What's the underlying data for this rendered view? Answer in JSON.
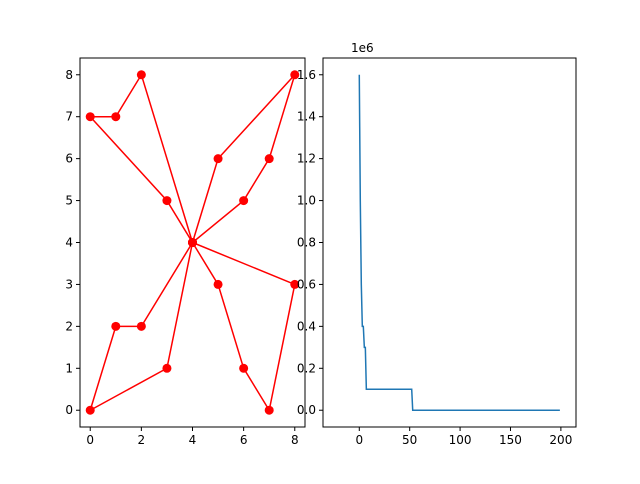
{
  "chart_data": [
    {
      "type": "line",
      "color": "#ff0000",
      "marker": "circle",
      "x": [
        4,
        2,
        1,
        0,
        3,
        4,
        5,
        8,
        7,
        6,
        4,
        8,
        7,
        6,
        5,
        4,
        3,
        0,
        1,
        2,
        4
      ],
      "values": [
        4,
        8,
        7,
        7,
        5,
        4,
        6,
        8,
        6,
        5,
        4,
        3,
        0,
        1,
        3,
        4,
        1,
        0,
        2,
        2,
        4
      ],
      "xlim": [
        -0.4,
        8.4
      ],
      "ylim": [
        -0.4,
        8.4
      ],
      "xticks": [
        0,
        2,
        4,
        6,
        8
      ],
      "yticks": [
        0,
        1,
        2,
        3,
        4,
        5,
        6,
        7,
        8
      ]
    },
    {
      "type": "line",
      "color": "#1f77b4",
      "marker": "none",
      "x": [
        0,
        1,
        2,
        3,
        4,
        5,
        6,
        7,
        52,
        53,
        199
      ],
      "values": [
        1600000,
        1000000,
        600000,
        400000,
        400000,
        300000,
        300000,
        100000,
        100000,
        0,
        0
      ],
      "offset_label": "1e6",
      "xlim": [
        -36,
        215
      ],
      "ylim": [
        -80000,
        1680000
      ],
      "xticks": [
        0,
        50,
        100,
        150,
        200
      ],
      "yticks": [
        {
          "value": 0,
          "label": "0.0"
        },
        {
          "value": 200000,
          "label": "0.2"
        },
        {
          "value": 400000,
          "label": "0.4"
        },
        {
          "value": 600000,
          "label": "0.6"
        },
        {
          "value": 800000,
          "label": "0.8"
        },
        {
          "value": 1000000,
          "label": "1.0"
        },
        {
          "value": 1200000,
          "label": "1.2"
        },
        {
          "value": 1400000,
          "label": "1.4"
        },
        {
          "value": 1600000,
          "label": "1.6"
        }
      ]
    }
  ]
}
